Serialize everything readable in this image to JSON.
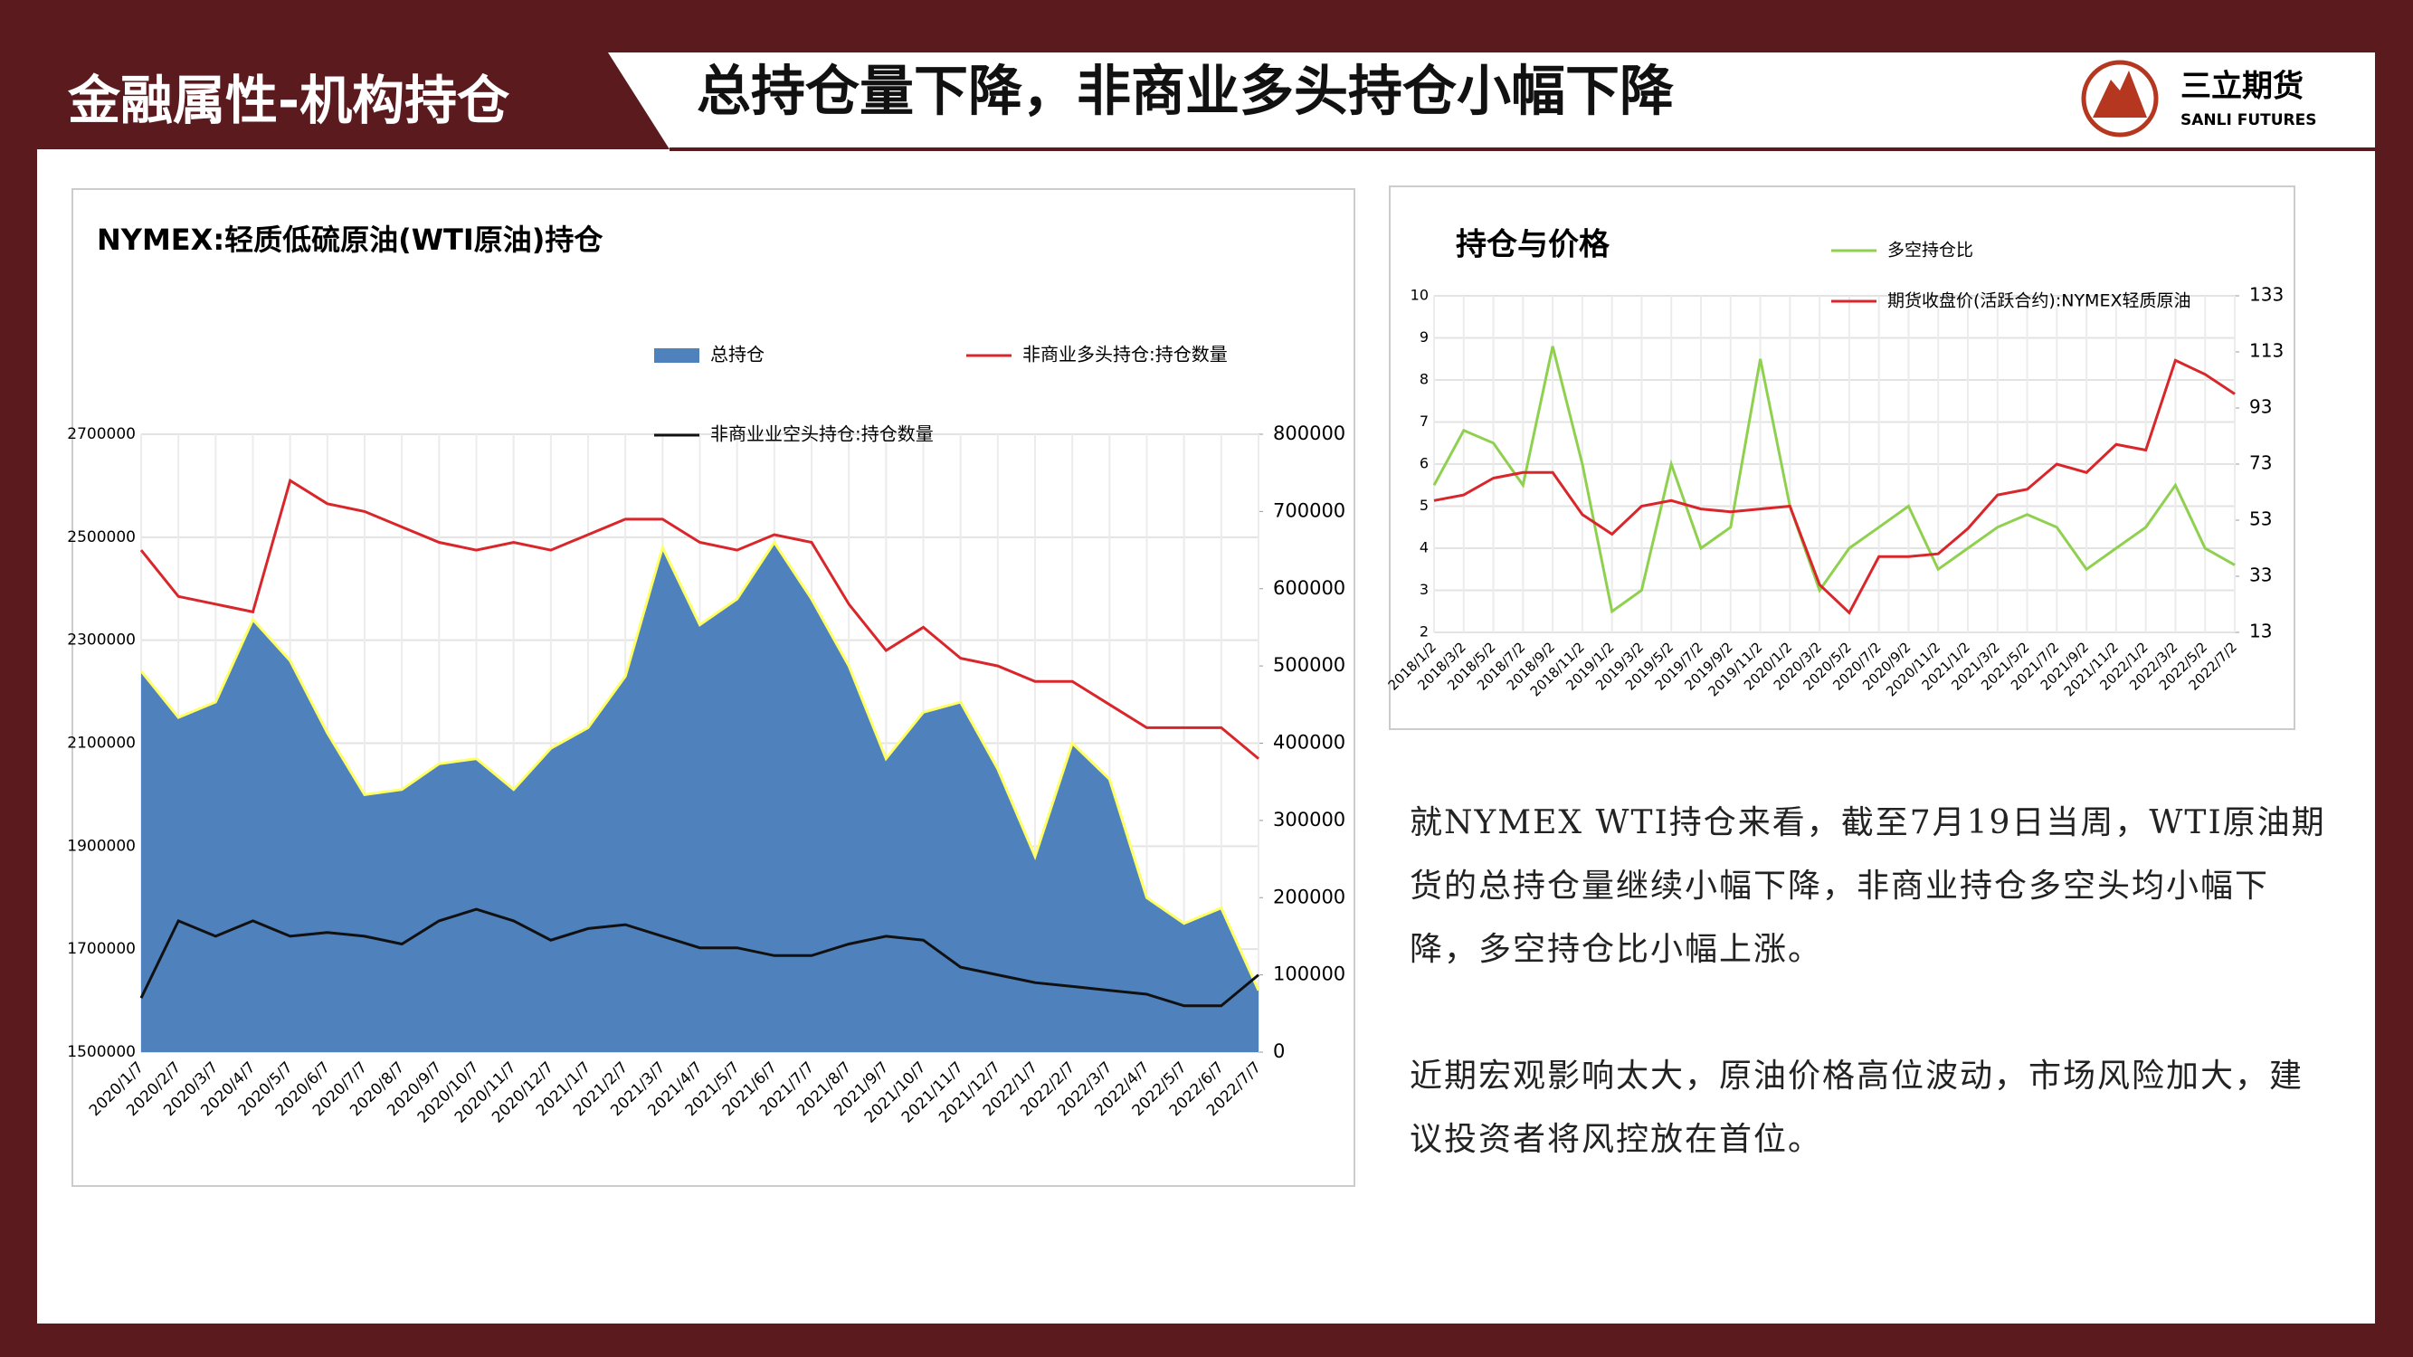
{
  "header": {
    "section": "金融属性-机构持仓",
    "title": "总持仓量下降，非商业多头持仓小幅下降",
    "logo_cn": "三立期货",
    "logo_en": "SANLI FUTURES"
  },
  "text": {
    "paragraphs": [
      "就NYMEX WTI持仓来看，截至7月19日当周，WTI原油期货的总持仓量继续小幅下降，非商业持仓多空头均小幅下降，多空持仓比小幅上涨。",
      "近期宏观影响太大，原油价格高位波动，市场风险加大，建议投资者将风控放在首位。"
    ]
  },
  "chart_data": [
    {
      "type": "line",
      "title": "NYMEX:轻质低硫原油(WTI原油)持仓",
      "grid": true,
      "categories": [
        "2020/1/7",
        "2020/2/7",
        "2020/3/7",
        "2020/4/7",
        "2020/5/7",
        "2020/6/7",
        "2020/7/7",
        "2020/8/7",
        "2020/9/7",
        "2020/10/7",
        "2020/11/7",
        "2020/12/7",
        "2021/1/7",
        "2021/2/7",
        "2021/3/7",
        "2021/4/7",
        "2021/5/7",
        "2021/6/7",
        "2021/7/7",
        "2021/8/7",
        "2021/9/7",
        "2021/10/7",
        "2021/11/7",
        "2021/12/7",
        "2022/1/7",
        "2022/2/7",
        "2022/3/7",
        "2022/4/7",
        "2022/5/7",
        "2022/6/7",
        "2022/7/7"
      ],
      "series": [
        {
          "name": "总持仓",
          "type": "area",
          "color": "#4f81bd",
          "edge": "#ffff66",
          "values": [
            2240000,
            2150000,
            2180000,
            2340000,
            2260000,
            2120000,
            2000000,
            2010000,
            2060000,
            2070000,
            2010000,
            2090000,
            2130000,
            2230000,
            2480000,
            2330000,
            2380000,
            2490000,
            2380000,
            2250000,
            2070000,
            2160000,
            2180000,
            2050000,
            1880000,
            2100000,
            2030000,
            1800000,
            1750000,
            1780000,
            1620000
          ]
        },
        {
          "name": "非商业多头持仓:持仓数量",
          "color": "#d9262b",
          "axis": "y2",
          "values": [
            650000,
            590000,
            580000,
            570000,
            740000,
            710000,
            700000,
            680000,
            660000,
            650000,
            660000,
            650000,
            670000,
            690000,
            690000,
            660000,
            650000,
            670000,
            660000,
            580000,
            520000,
            550000,
            510000,
            500000,
            480000,
            480000,
            450000,
            420000,
            420000,
            420000,
            380000
          ]
        },
        {
          "name": "非商业业空头持仓:持仓数量",
          "color": "#111111",
          "axis": "y2",
          "values": [
            70000,
            170000,
            150000,
            170000,
            150000,
            155000,
            150000,
            140000,
            170000,
            185000,
            170000,
            145000,
            160000,
            165000,
            150000,
            135000,
            135000,
            125000,
            125000,
            140000,
            150000,
            145000,
            110000,
            100000,
            90000,
            85000,
            80000,
            75000,
            60000,
            60000,
            100000
          ]
        }
      ],
      "ylim": [
        1500000,
        2700000
      ],
      "yticks": [
        1500000,
        1700000,
        1900000,
        2100000,
        2300000,
        2500000,
        2700000
      ],
      "y2lim": [
        0,
        800000
      ],
      "y2ticks": [
        0,
        100000,
        200000,
        300000,
        400000,
        500000,
        600000,
        700000,
        800000
      ]
    },
    {
      "type": "line",
      "title": "持仓与价格",
      "grid": true,
      "categories": [
        "2018/1/2",
        "2018/3/2",
        "2018/5/2",
        "2018/7/2",
        "2018/9/2",
        "2018/11/2",
        "2019/1/2",
        "2019/3/2",
        "2019/5/2",
        "2019/7/2",
        "2019/9/2",
        "2019/11/2",
        "2020/1/2",
        "2020/3/2",
        "2020/5/2",
        "2020/7/2",
        "2020/9/2",
        "2020/11/2",
        "2021/1/2",
        "2021/3/2",
        "2021/5/2",
        "2021/7/2",
        "2021/9/2",
        "2021/11/2",
        "2022/1/2",
        "2022/3/2",
        "2022/5/2",
        "2022/7/2"
      ],
      "series": [
        {
          "name": "多空持仓比",
          "color": "#8fd14f",
          "values": [
            5.5,
            6.8,
            6.5,
            5.5,
            8.8,
            6.0,
            2.5,
            3.0,
            6.0,
            4.0,
            4.5,
            8.5,
            5.0,
            3.0,
            4.0,
            4.5,
            5.0,
            3.5,
            4.0,
            4.5,
            4.8,
            4.5,
            3.5,
            4.0,
            4.5,
            5.5,
            4.0,
            3.6
          ]
        },
        {
          "name": "期货收盘价(活跃合约):NYMEX轻质原油",
          "color": "#d9262b",
          "axis": "y2",
          "values": [
            60,
            62,
            68,
            70,
            70,
            55,
            48,
            58,
            60,
            57,
            56,
            57,
            58,
            30,
            20,
            40,
            40,
            41,
            50,
            62,
            64,
            73,
            70,
            80,
            78,
            110,
            105,
            98
          ]
        }
      ],
      "ylim": [
        2,
        10
      ],
      "yticks": [
        2,
        3,
        4,
        5,
        6,
        7,
        8,
        9,
        10
      ],
      "y2lim": [
        13,
        133
      ],
      "y2ticks": [
        13,
        33,
        53,
        73,
        93,
        113,
        133
      ]
    }
  ]
}
